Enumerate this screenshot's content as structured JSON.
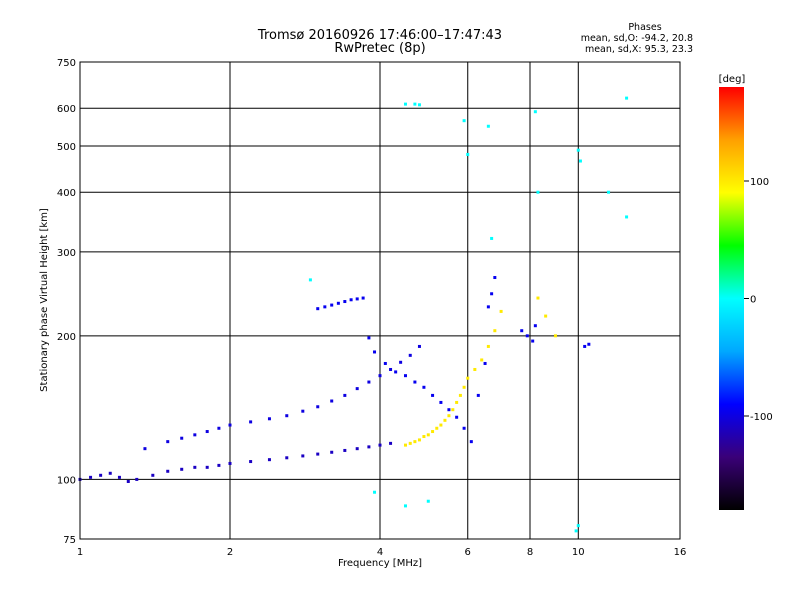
{
  "header": {
    "title_line1": "Tromsø 20160926 17:46:00–17:47:43",
    "title_line2": "RwPretec (8p)",
    "stats_heading": "Phases",
    "stats_o": "mean, sd,O: -94.2, 20.8",
    "stats_x": "mean, sd,X: 95.3, 23.3"
  },
  "chart_data": {
    "type": "scatter",
    "title": "Tromsø 20160926 17:46:00–17:47:43",
    "subtitle": "RwPretec (8p)",
    "xlabel": "Frequency [MHz]",
    "ylabel": "Stationary phase Virtual Height [km]",
    "xscale": "log",
    "yscale": "log",
    "xlim": [
      1,
      16
    ],
    "ylim": [
      75,
      750
    ],
    "x_ticks": [
      1,
      2,
      4,
      6,
      8,
      10,
      16
    ],
    "x_tick_labels": [
      "1",
      "2",
      "4",
      "6",
      "8",
      "10",
      "16"
    ],
    "y_ticks": [
      75,
      100,
      200,
      300,
      400,
      500,
      600,
      750
    ],
    "y_tick_labels": [
      "75",
      "100",
      "200",
      "300",
      "400",
      "500",
      "600",
      "750"
    ],
    "grid": true,
    "colorbar": {
      "label": "[deg]",
      "range": [
        -180,
        180
      ],
      "ticks": [
        100,
        0,
        -100
      ],
      "tick_labels": [
        "100",
        "0",
        "-100"
      ],
      "colors": [
        "#000000",
        "#3a0078",
        "#0000ff",
        "#00a8ff",
        "#00ffff",
        "#00ff00",
        "#ffff00",
        "#ffa000",
        "#ff0000"
      ]
    },
    "series": [
      {
        "trace": "lower",
        "phase": -110,
        "x": [
          1.0,
          1.05,
          1.1,
          1.15,
          1.2,
          1.25,
          1.3,
          1.4,
          1.5,
          1.6,
          1.7,
          1.8,
          1.9,
          2.0,
          2.2,
          2.4,
          2.6,
          2.8,
          3.0,
          3.2,
          3.4,
          3.6,
          3.8,
          4.0,
          4.2
        ],
        "y": [
          100,
          101,
          102,
          103,
          101,
          99,
          100,
          102,
          104,
          105,
          106,
          106,
          107,
          108,
          109,
          110,
          111,
          112,
          113,
          114,
          115,
          116,
          117,
          118,
          119
        ]
      },
      {
        "trace": "upper",
        "phase": -100,
        "x": [
          1.35,
          1.5,
          1.6,
          1.7,
          1.8,
          1.9,
          2.0,
          2.2,
          2.4,
          2.6,
          2.8,
          3.0,
          3.2,
          3.4,
          3.6,
          3.8,
          4.0,
          4.2,
          4.4,
          4.6,
          4.8
        ],
        "y": [
          116,
          120,
          122,
          124,
          126,
          128,
          130,
          132,
          134,
          136,
          139,
          142,
          146,
          150,
          155,
          160,
          165,
          170,
          176,
          182,
          190
        ]
      },
      {
        "trace": "scatter-blue",
        "phase": -95,
        "x": [
          3.0,
          3.1,
          3.2,
          3.3,
          3.4,
          3.5,
          3.6,
          3.7,
          3.8,
          3.9,
          4.1,
          4.3,
          4.5,
          4.7,
          4.9,
          5.1,
          5.3,
          5.5,
          5.7,
          5.9,
          6.1,
          6.3,
          6.5,
          6.6,
          6.7,
          6.8,
          7.7,
          7.9,
          8.1,
          8.2,
          10.3,
          10.5
        ],
        "y": [
          228,
          230,
          232,
          234,
          236,
          238,
          239,
          240,
          198,
          185,
          175,
          168,
          165,
          160,
          156,
          150,
          145,
          140,
          135,
          128,
          120,
          150,
          175,
          230,
          245,
          265,
          205,
          200,
          195,
          210,
          190,
          192
        ]
      },
      {
        "trace": "X-mode",
        "phase": 100,
        "x": [
          4.5,
          4.6,
          4.7,
          4.8,
          4.9,
          5.0,
          5.1,
          5.2,
          5.3,
          5.4,
          5.5,
          5.6,
          5.7,
          5.8,
          5.9,
          6.0,
          6.2,
          6.4,
          6.6,
          6.8,
          7.0,
          8.3,
          8.6,
          9.0
        ],
        "y": [
          118,
          119,
          120,
          121,
          123,
          124,
          126,
          128,
          130,
          133,
          136,
          140,
          145,
          150,
          156,
          163,
          170,
          178,
          190,
          205,
          225,
          240,
          220,
          200
        ]
      },
      {
        "trace": "outliers",
        "phase": 0,
        "x": [
          4.5,
          4.7,
          4.8,
          5.9,
          6.0,
          6.6,
          6.7,
          8.2,
          8.3,
          10.0,
          10.1,
          11.5,
          12.5,
          12.5,
          10.0,
          9.9,
          2.9,
          3.9,
          4.5,
          5.0
        ],
        "y": [
          612,
          612,
          610,
          565,
          480,
          550,
          320,
          590,
          400,
          490,
          465,
          400,
          630,
          355,
          80,
          78,
          262,
          94,
          88,
          90
        ]
      }
    ]
  }
}
